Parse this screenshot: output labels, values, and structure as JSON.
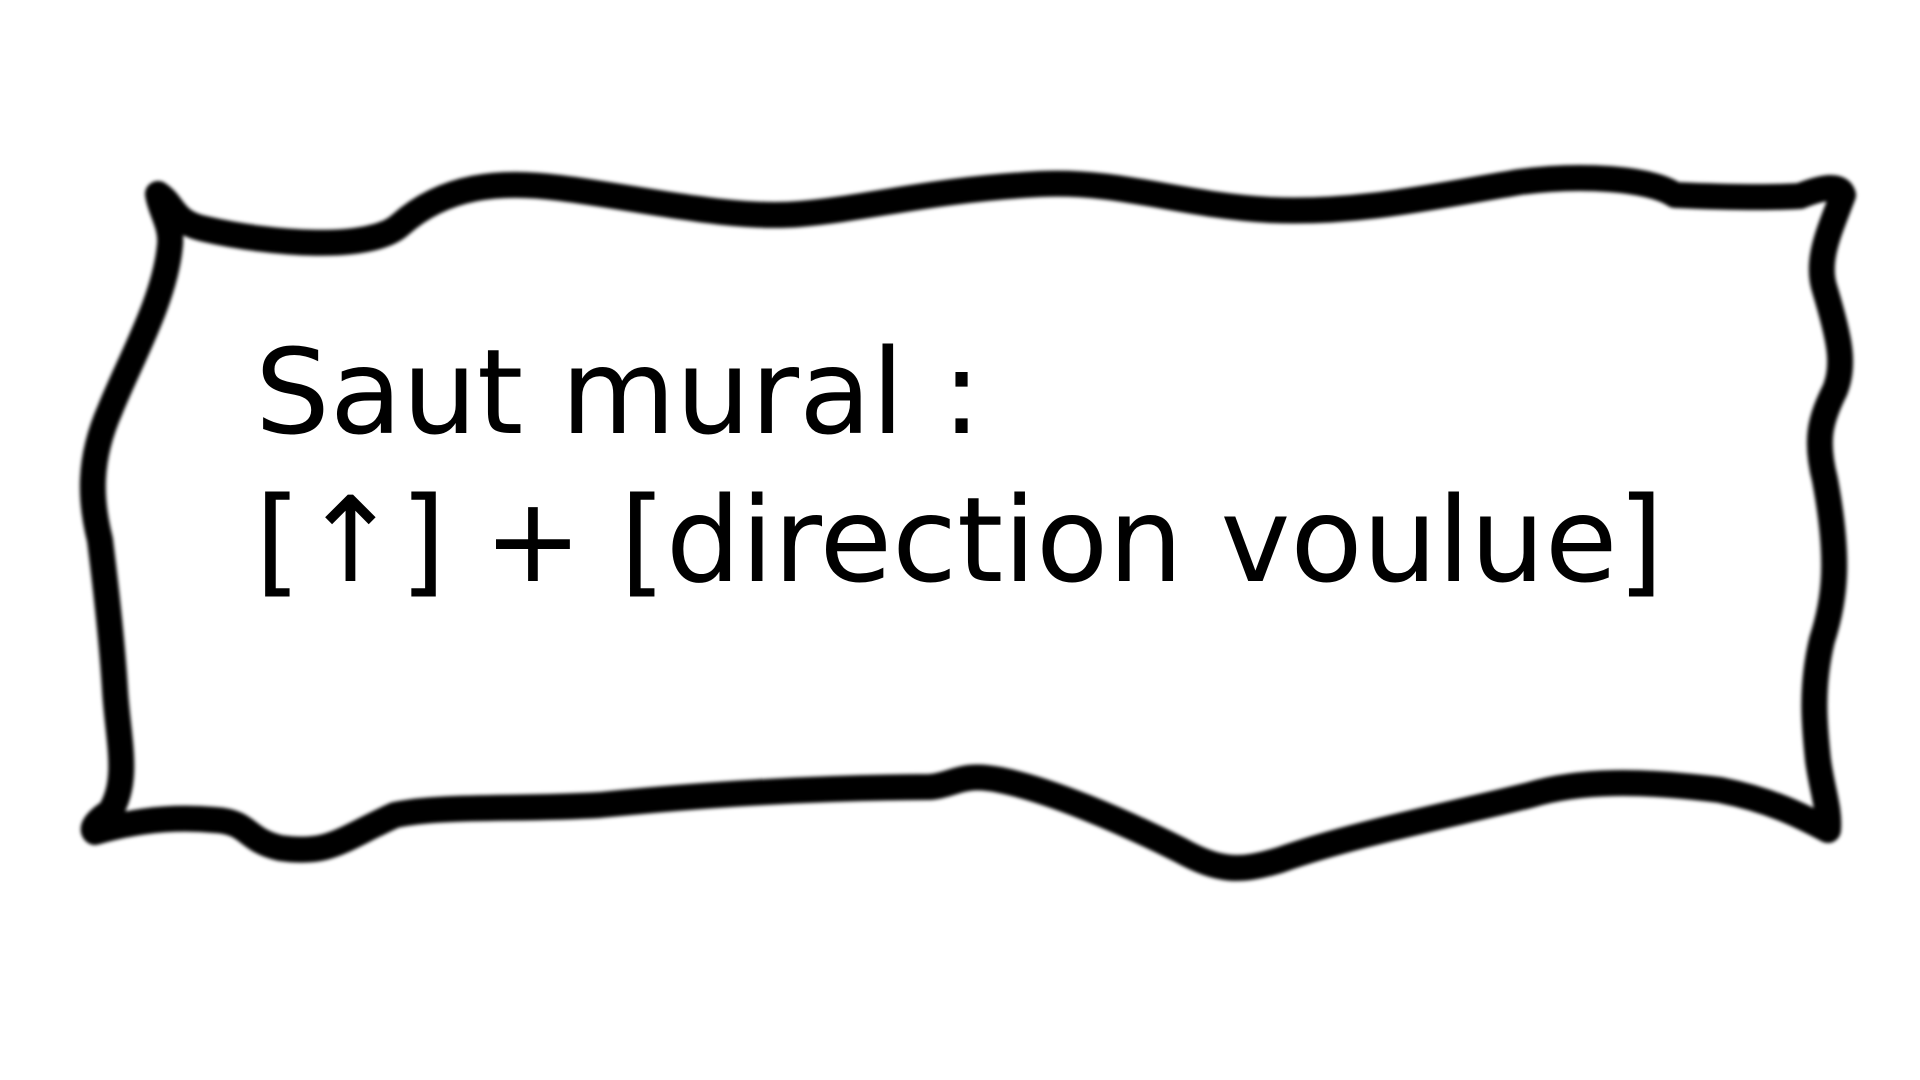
{
  "tutorial_sign": {
    "title": "Saut mural :",
    "controls": "[↑] + [direction voulue]"
  },
  "colors": {
    "background": "#ffffff",
    "ink": "#000000"
  }
}
